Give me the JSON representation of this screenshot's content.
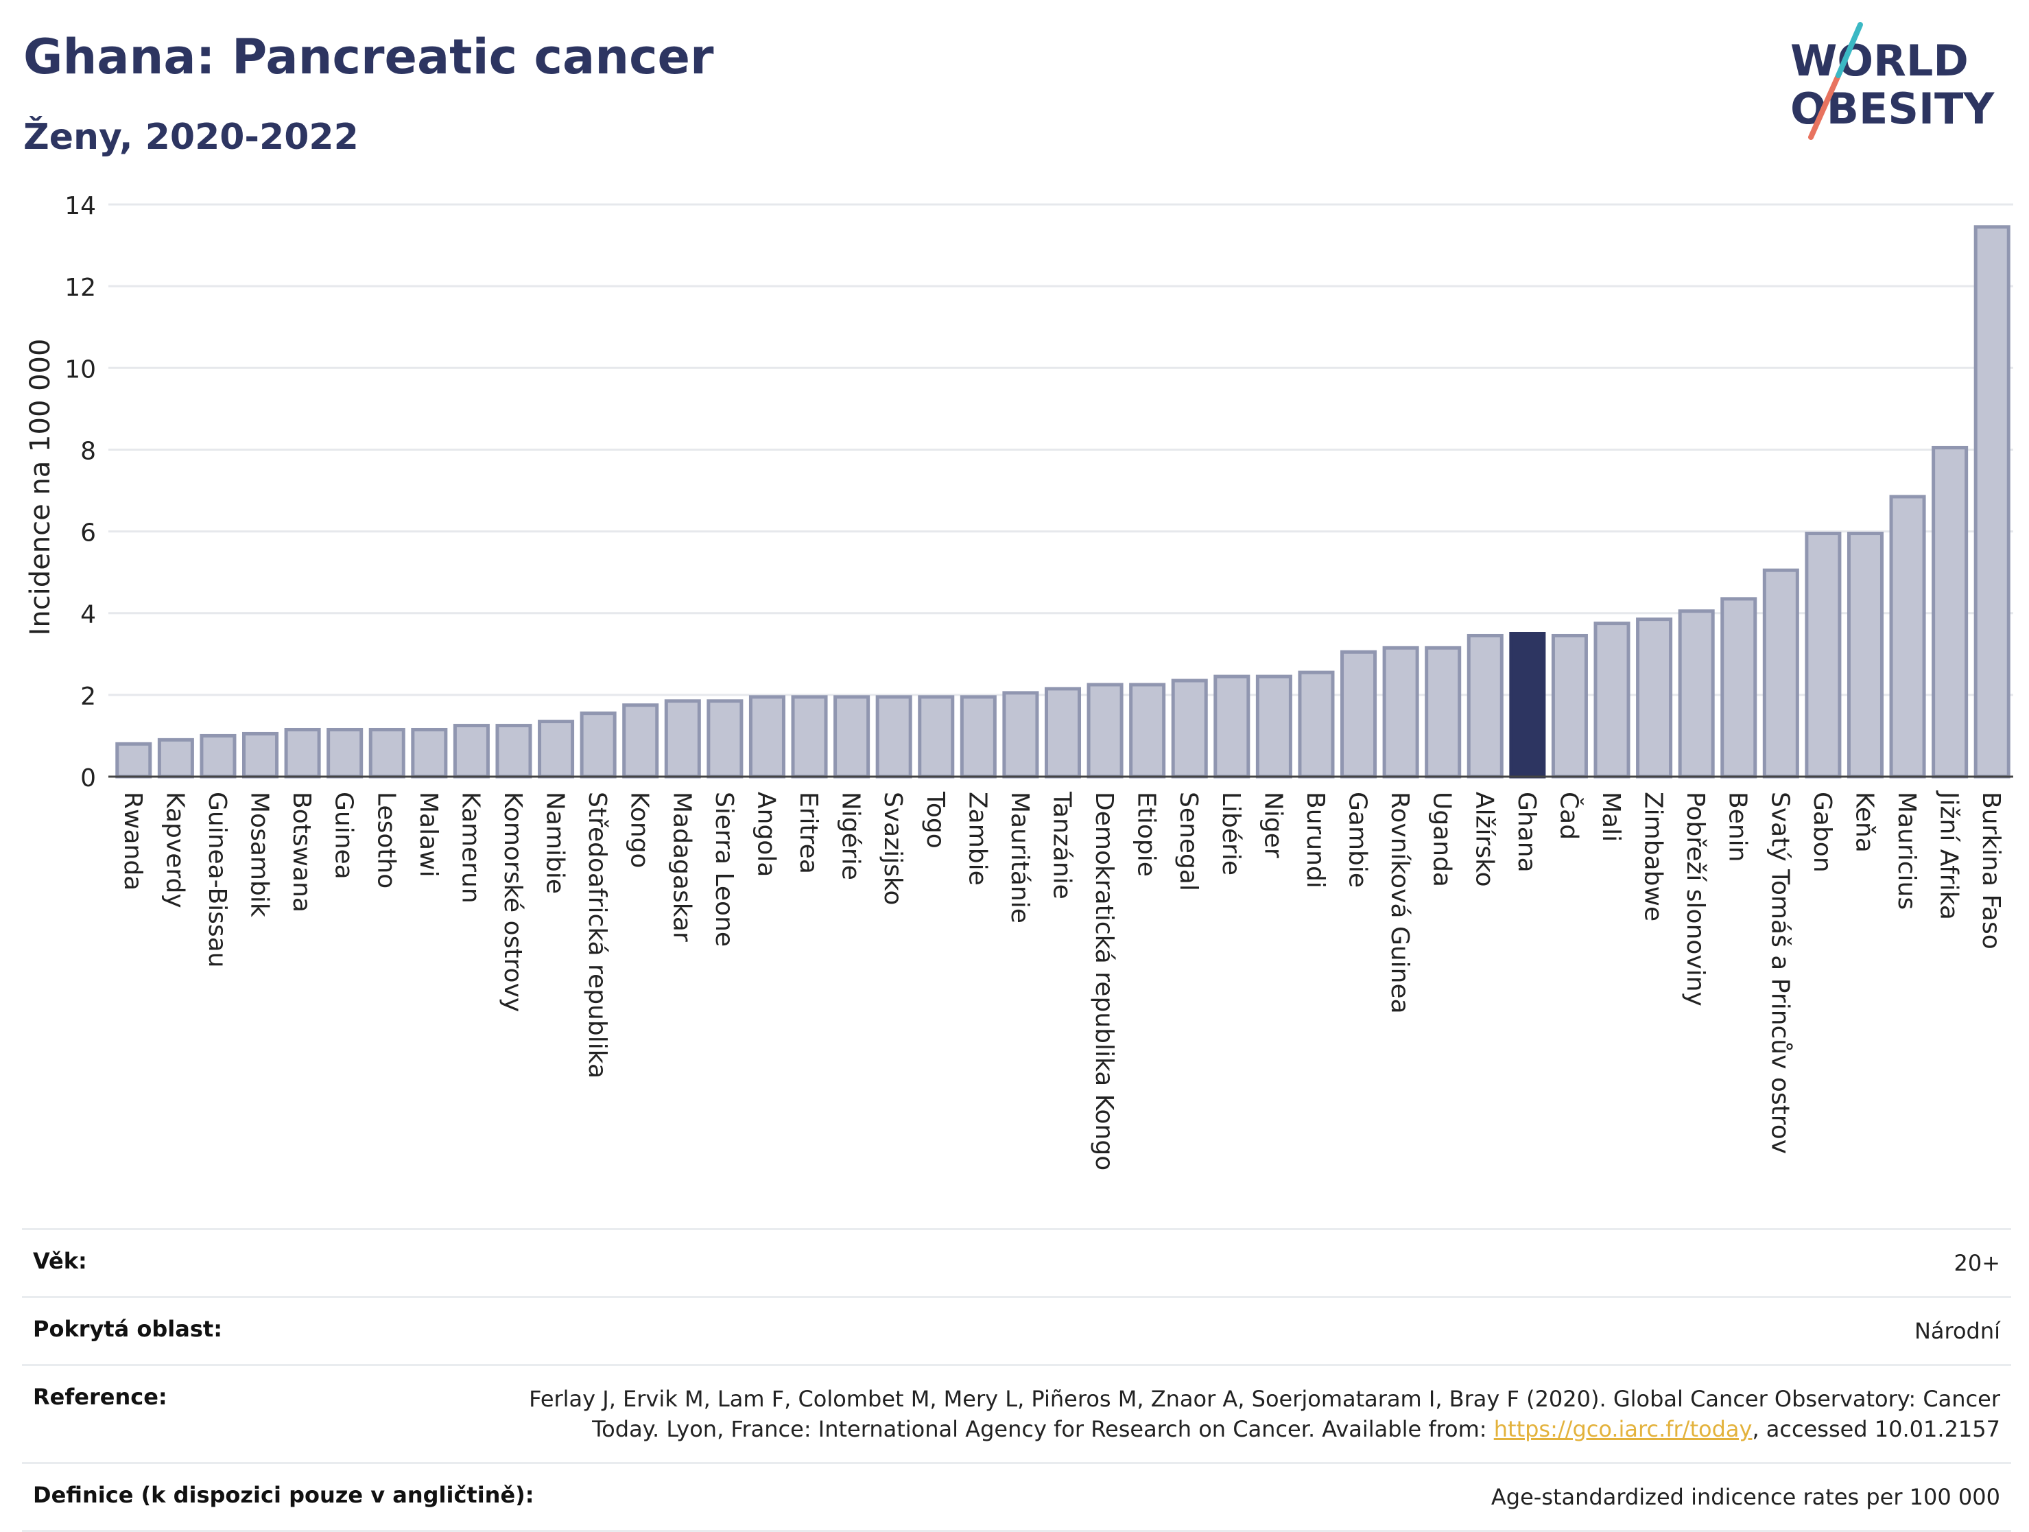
{
  "title": "Ghana: Pancreatic cancer",
  "subtitle": "Ženy, 2020-2022",
  "logo": {
    "line1": "WORLD",
    "line2": "OBESITY"
  },
  "chart_data": {
    "type": "bar",
    "ylabel": "Incidence na 100 000",
    "ylim": [
      0,
      14
    ],
    "yticks": [
      0,
      2,
      4,
      6,
      8,
      10,
      12,
      14
    ],
    "grid": true,
    "highlight": "Ghana",
    "categories": [
      "Rwanda",
      "Kapverdy",
      "Guinea-Bissau",
      "Mosambik",
      "Botswana",
      "Guinea",
      "Lesotho",
      "Malawi",
      "Kamerun",
      "Komorské ostrovy",
      "Namibie",
      "Středoafrická republika",
      "Kongo",
      "Madagaskar",
      "Sierra Leone",
      "Angola",
      "Eritrea",
      "Nigérie",
      "Svazijsko",
      "Togo",
      "Zambie",
      "Mauritánie",
      "Tanzánie",
      "Demokratická republika Kongo",
      "Etiopie",
      "Senegal",
      "Libérie",
      "Niger",
      "Burundi",
      "Gambie",
      "Rovníková Guinea",
      "Uganda",
      "Alžírsko",
      "Ghana",
      "Čad",
      "Mali",
      "Zimbabwe",
      "Pobřeží slonoviny",
      "Benin",
      "Svatý Tomáš a Princův ostrov",
      "Gabon",
      "Keňa",
      "Mauricius",
      "Jižní Afrika",
      "Burkina Faso"
    ],
    "values": [
      0.8,
      0.9,
      1.0,
      1.05,
      1.15,
      1.15,
      1.15,
      1.15,
      1.25,
      1.25,
      1.35,
      1.55,
      1.75,
      1.85,
      1.85,
      1.95,
      1.95,
      1.95,
      1.95,
      1.95,
      1.95,
      2.05,
      2.15,
      2.25,
      2.25,
      2.35,
      2.45,
      2.45,
      2.55,
      3.05,
      3.15,
      3.15,
      3.45,
      3.5,
      3.45,
      3.75,
      3.85,
      4.05,
      4.35,
      5.05,
      5.95,
      5.95,
      6.85,
      8.05,
      13.45
    ]
  },
  "colors": {
    "bar": "#c1c4d3",
    "bar_border": "#9096b0",
    "highlight": "#2d3561",
    "title": "#2d3561",
    "link": "#e3b23c"
  },
  "info": {
    "age_label": "Věk:",
    "age_value": "20+",
    "area_label": "Pokrytá oblast:",
    "area_value": "Národní",
    "ref_label": "Reference:",
    "ref_text_1": "Ferlay J, Ervik M, Lam F, Colombet M, Mery L, Piñeros M, Znaor A, Soerjomataram I, Bray F (2020). Global Cancer Observatory: Cancer Today. Lyon, France: International Agency for Research on Cancer. Available from:",
    "ref_link": "https://gco.iarc.fr/today",
    "ref_text_2": ", accessed 10.01.2157",
    "def_label": "Definice (k dispozici pouze v angličtině):",
    "def_value": "Age-standardized indicence rates per 100 000"
  }
}
